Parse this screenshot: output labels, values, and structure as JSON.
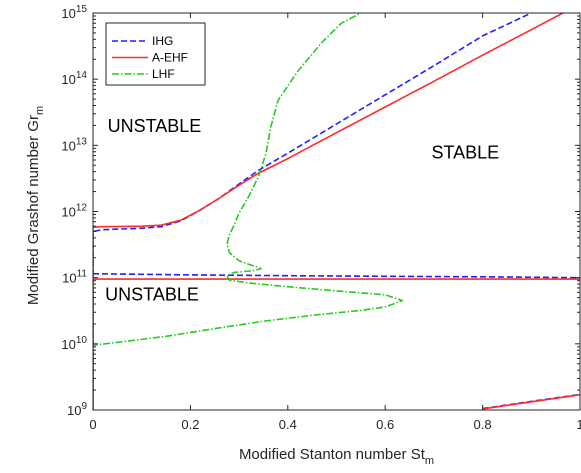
{
  "chart_data": {
    "type": "line",
    "title": "",
    "xlabel": "Modified Stanton number St",
    "xlabel_sub": "m",
    "ylabel": "Modified Grashof number Gr",
    "ylabel_sub": "m",
    "xlim": [
      0,
      1
    ],
    "ylim": [
      1000000000.0,
      1000000000000000.0
    ],
    "yscale": "log",
    "grid": false,
    "legend_position": "top-left",
    "x_ticks": [
      {
        "v": 0,
        "label": "0"
      },
      {
        "v": 0.2,
        "label": "0.2"
      },
      {
        "v": 0.4,
        "label": "0.4"
      },
      {
        "v": 0.6,
        "label": "0.6"
      },
      {
        "v": 0.8,
        "label": "0.8"
      },
      {
        "v": 1,
        "label": "1"
      }
    ],
    "y_ticks": [
      {
        "v": 1000000000.0,
        "base": "10",
        "exp": "9"
      },
      {
        "v": 10000000000.0,
        "base": "10",
        "exp": "10"
      },
      {
        "v": 100000000000.0,
        "base": "10",
        "exp": "11"
      },
      {
        "v": 1000000000000.0,
        "base": "10",
        "exp": "12"
      },
      {
        "v": 10000000000000.0,
        "base": "10",
        "exp": "13"
      },
      {
        "v": 100000000000000.0,
        "base": "10",
        "exp": "14"
      },
      {
        "v": 1000000000000000.0,
        "base": "10",
        "exp": "15"
      }
    ],
    "annotations": [
      {
        "text": "UNSTABLE",
        "x": 0.03,
        "y": 16000000000000.0
      },
      {
        "text": "STABLE",
        "x": 0.695,
        "y": 6300000000000.0
      },
      {
        "text": "UNSTABLE",
        "x": 0.025,
        "y": 45000000000.0
      }
    ],
    "series": [
      {
        "name": "IHG",
        "color": "#1f1fff",
        "dash": "6,3",
        "segments": [
          [
            [
              0,
              1000000000.0
            ],
            [
              0,
              500000000000.0
            ],
            [
              0.02,
              530000000000.0
            ],
            [
              0.1,
              560000000000.0
            ],
            [
              0.14,
              590000000000.0
            ],
            [
              0.18,
              720000000000.0
            ],
            [
              0.22,
              1050000000000.0
            ],
            [
              0.26,
              1600000000000.0
            ],
            [
              0.3,
              2600000000000.0
            ],
            [
              0.34,
              4200000000000.0
            ],
            [
              0.4,
              7600000000000.0
            ],
            [
              0.5,
              21000000000000.0
            ],
            [
              0.6,
              58000000000000.0
            ],
            [
              0.7,
              160000000000000.0
            ],
            [
              0.8,
              450000000000000.0
            ],
            [
              0.9,
              1000000000000000.0
            ]
          ],
          [
            [
              0,
              115000000000.0
            ],
            [
              0.2,
              110000000000.0
            ],
            [
              0.4,
              107000000000.0
            ],
            [
              0.6,
              105000000000.0
            ],
            [
              0.8,
              103000000000.0
            ],
            [
              1,
              100000000000.0
            ]
          ],
          [
            [
              0.8,
              1050000000.0
            ],
            [
              0.9,
              1350000000.0
            ],
            [
              1,
              1720000000.0
            ]
          ]
        ]
      },
      {
        "name": "A-EHF",
        "color": "#ff2a2a",
        "dash": "",
        "segments": [
          [
            [
              0,
              1000000000.0
            ],
            [
              0,
              580000000000.0
            ],
            [
              0.02,
              590000000000.0
            ],
            [
              0.1,
              600000000000.0
            ],
            [
              0.14,
              620000000000.0
            ],
            [
              0.18,
              740000000000.0
            ],
            [
              0.22,
              1050000000000.0
            ],
            [
              0.26,
              1600000000000.0
            ],
            [
              0.3,
              2500000000000.0
            ],
            [
              0.34,
              3800000000000.0
            ],
            [
              0.4,
              6300000000000.0
            ],
            [
              0.5,
              15500000000000.0
            ],
            [
              0.6,
              38000000000000.0
            ],
            [
              0.7,
              93000000000000.0
            ],
            [
              0.8,
              230000000000000.0
            ],
            [
              0.9,
              560000000000000.0
            ],
            [
              1,
              1370000000000000.0
            ]
          ],
          [
            [
              0,
              95000000000.0
            ],
            [
              0.5,
              95000000000.0
            ],
            [
              1,
              95000000000.0
            ]
          ],
          [
            [
              0.8,
              1040000000.0
            ],
            [
              0.9,
              1330000000.0
            ],
            [
              1,
              1700000000.0
            ]
          ]
        ]
      },
      {
        "name": "LHF",
        "color": "#22cc22",
        "dash": "7,2,1.5,2",
        "segments": [
          [
            [
              0,
              1000000000.0
            ],
            [
              0,
              9500000000.0
            ],
            [
              0.05,
              10500000000.0
            ],
            [
              0.15,
              13000000000.0
            ],
            [
              0.25,
              17000000000.0
            ],
            [
              0.35,
              22000000000.0
            ],
            [
              0.45,
              27000000000.0
            ],
            [
              0.55,
              32000000000.0
            ],
            [
              0.6,
              36000000000.0
            ],
            [
              0.635,
              45000000000.0
            ],
            [
              0.6,
              55000000000.0
            ],
            [
              0.5,
              63000000000.0
            ],
            [
              0.4,
              73000000000.0
            ],
            [
              0.32,
              83000000000.0
            ],
            [
              0.28,
              92000000000.0
            ],
            [
              0.275,
              108000000000.0
            ],
            [
              0.29,
              120000000000.0
            ],
            [
              0.33,
              128000000000.0
            ],
            [
              0.345,
              137000000000.0
            ],
            [
              0.33,
              150000000000.0
            ],
            [
              0.3,
              180000000000.0
            ],
            [
              0.28,
              240000000000.0
            ],
            [
              0.275,
              320000000000.0
            ],
            [
              0.28,
              440000000000.0
            ],
            [
              0.29,
              630000000000.0
            ],
            [
              0.3,
              950000000000.0
            ],
            [
              0.32,
              1700000000000.0
            ],
            [
              0.34,
              3400000000000.0
            ],
            [
              0.355,
              7500000000000.0
            ],
            [
              0.365,
              19000000000000.0
            ],
            [
              0.38,
              48000000000000.0
            ],
            [
              0.42,
              130000000000000.0
            ],
            [
              0.47,
              360000000000000.0
            ],
            [
              0.51,
              700000000000000.0
            ],
            [
              0.55,
              1000000000000000.0
            ]
          ]
        ]
      }
    ]
  }
}
